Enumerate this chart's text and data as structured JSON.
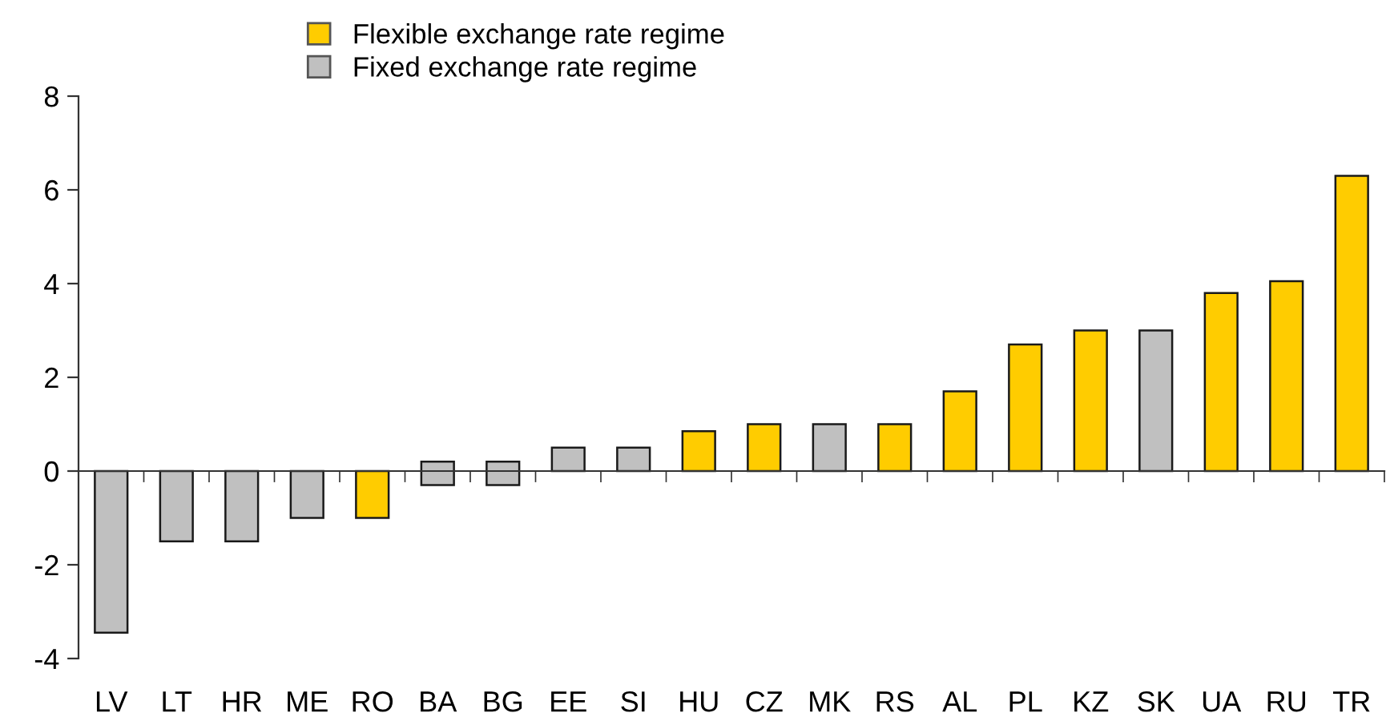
{
  "chart_data": {
    "type": "bar",
    "categories": [
      "LV",
      "LT",
      "HR",
      "ME",
      "RO",
      "BA",
      "BG",
      "EE",
      "SI",
      "HU",
      "CZ",
      "MK",
      "RS",
      "AL",
      "PL",
      "KZ",
      "SK",
      "UA",
      "RU",
      "TR"
    ],
    "series": [
      {
        "name": "Flexible exchange rate regime",
        "color": "#ffcc00",
        "values": [
          null,
          null,
          null,
          null,
          -1.0,
          null,
          null,
          null,
          null,
          0.85,
          1.0,
          null,
          1.0,
          1.7,
          2.7,
          3.0,
          null,
          3.8,
          4.05,
          6.3
        ]
      },
      {
        "name": "Fixed exchange rate regime",
        "color": "#c0c0c0",
        "values": [
          -3.45,
          -1.5,
          -1.5,
          -1.0,
          null,
          0.5,
          0.5,
          0.5,
          0.5,
          null,
          null,
          1.0,
          null,
          null,
          null,
          null,
          3.0,
          null,
          null,
          null
        ],
        "base": [
          null,
          null,
          null,
          null,
          null,
          -0.3,
          -0.3,
          null,
          null,
          null,
          null,
          null,
          null,
          null,
          null,
          null,
          null,
          null,
          null,
          null
        ]
      }
    ],
    "ylim": [
      -4,
      8
    ],
    "yticks": [
      -4,
      -2,
      0,
      2,
      4,
      6,
      8
    ],
    "legend": "top"
  }
}
